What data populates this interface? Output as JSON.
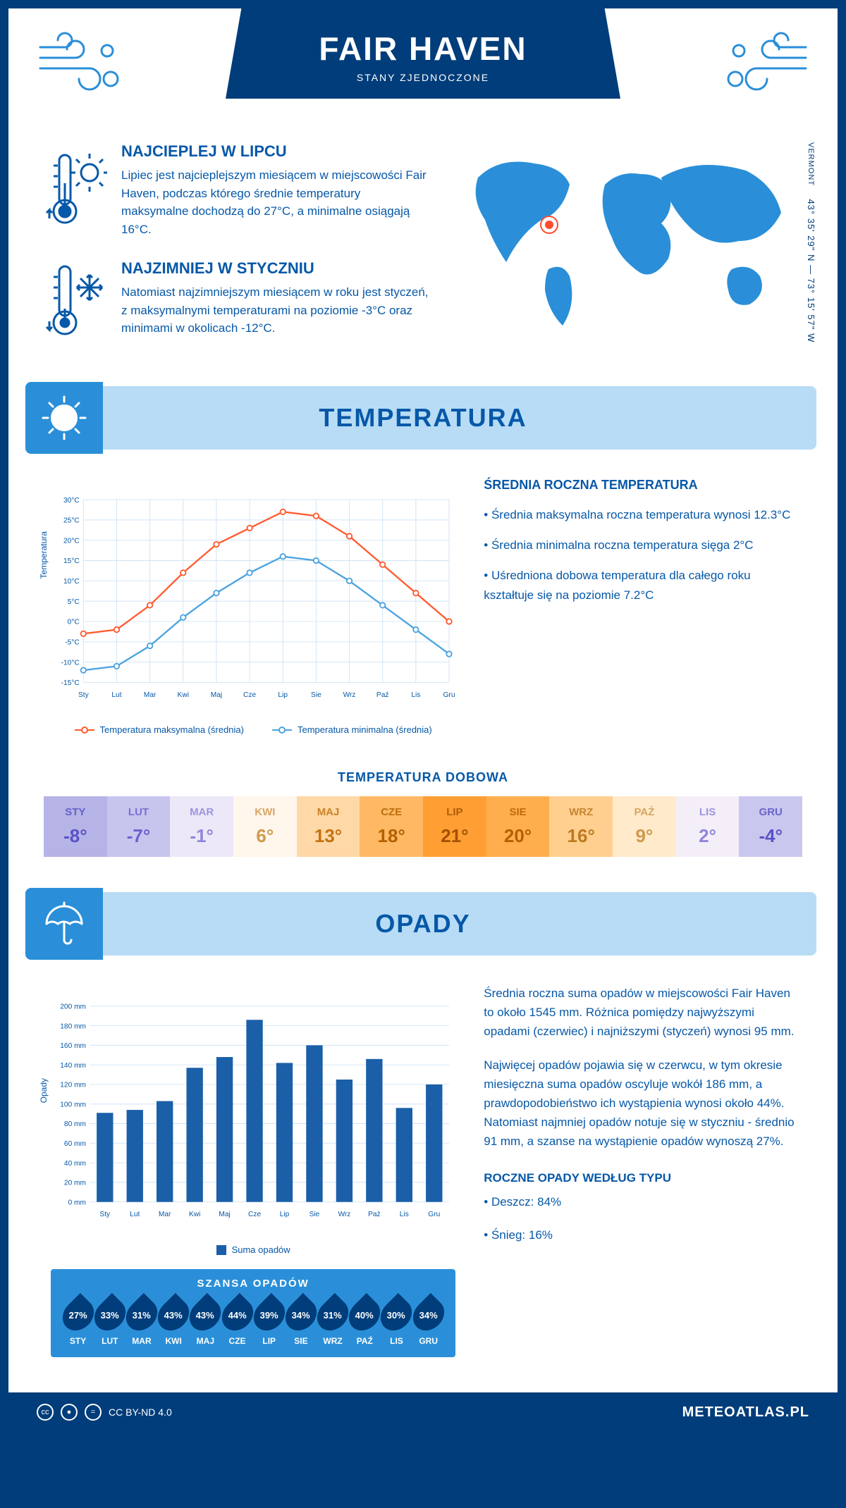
{
  "header": {
    "title": "FAIR HAVEN",
    "subtitle": "STANY ZJEDNOCZONE"
  },
  "location": {
    "region": "VERMONT",
    "coords": "43° 35' 29\" N — 73° 15' 57\" W",
    "marker_color": "#ff4d2e"
  },
  "intro": {
    "warm": {
      "title": "NAJCIEPLEJ W LIPCU",
      "text": "Lipiec jest najcieplejszym miesiącem w miejscowości Fair Haven, podczas którego średnie temperatury maksymalne dochodzą do 27°C, a minimalne osiągają 16°C."
    },
    "cold": {
      "title": "NAJZIMNIEJ W STYCZNIU",
      "text": "Natomiast najzimniejszym miesiącem w roku jest styczeń, z maksymalnymi temperaturami na poziomie -3°C oraz minimami w okolicach -12°C."
    }
  },
  "temperature": {
    "section_title": "TEMPERATURA",
    "chart": {
      "type": "line",
      "months": [
        "Sty",
        "Lut",
        "Mar",
        "Kwi",
        "Maj",
        "Cze",
        "Lip",
        "Sie",
        "Wrz",
        "Paź",
        "Lis",
        "Gru"
      ],
      "ylim": [
        -15,
        30
      ],
      "ytick_step": 5,
      "y_suffix": "°C",
      "y_axis_label": "Temperatura",
      "grid_color": "#d0e4f5",
      "background": "#ffffff",
      "series": [
        {
          "name": "Temperatura maksymalna (średnia)",
          "color": "#ff5a2e",
          "values": [
            -3,
            -2,
            4,
            12,
            19,
            23,
            27,
            26,
            21,
            14,
            7,
            0
          ]
        },
        {
          "name": "Temperatura minimalna (średnia)",
          "color": "#4aa3e0",
          "values": [
            -12,
            -11,
            -6,
            1,
            7,
            12,
            16,
            15,
            10,
            4,
            -2,
            -8
          ]
        }
      ]
    },
    "info": {
      "title": "ŚREDNIA ROCZNA TEMPERATURA",
      "bullets": [
        "Średnia maksymalna roczna temperatura wynosi 12.3°C",
        "Średnia minimalna roczna temperatura sięga 2°C",
        "Uśredniona dobowa temperatura dla całego roku kształtuje się na poziomie 7.2°C"
      ]
    },
    "daily": {
      "title": "TEMPERATURA DOBOWA",
      "months": [
        "STY",
        "LUT",
        "MAR",
        "KWI",
        "MAJ",
        "CZE",
        "LIP",
        "SIE",
        "WRZ",
        "PAŹ",
        "LIS",
        "GRU"
      ],
      "values": [
        "-8°",
        "-7°",
        "-1°",
        "6°",
        "13°",
        "18°",
        "21°",
        "20°",
        "16°",
        "9°",
        "2°",
        "-4°"
      ],
      "colors": [
        "#b6b3e6",
        "#c7c5ee",
        "#ede8f7",
        "#fff6ec",
        "#ffd8a8",
        "#ffb964",
        "#ff9f33",
        "#ffae4d",
        "#ffcf8f",
        "#ffeacb",
        "#f4eef8",
        "#cac7ef"
      ],
      "text_colors": [
        "#5a52c4",
        "#6b63cf",
        "#8e86dc",
        "#cf9a4e",
        "#c27410",
        "#b36000",
        "#a35000",
        "#b36000",
        "#bd7a1f",
        "#cf9a4e",
        "#8e86dc",
        "#5a52c4"
      ]
    }
  },
  "precip": {
    "section_title": "OPADY",
    "chart": {
      "type": "bar",
      "months": [
        "Sty",
        "Lut",
        "Mar",
        "Kwi",
        "Maj",
        "Cze",
        "Lip",
        "Sie",
        "Wrz",
        "Paź",
        "Lis",
        "Gru"
      ],
      "values": [
        91,
        94,
        103,
        137,
        148,
        186,
        142,
        160,
        125,
        146,
        96,
        120
      ],
      "ylim": [
        0,
        200
      ],
      "ytick_step": 20,
      "y_suffix": " mm",
      "y_axis_label": "Opady",
      "bar_color": "#1a5fa8",
      "grid_color": "#d0e4f5",
      "legend": "Suma opadów"
    },
    "info": {
      "p1": "Średnia roczna suma opadów w miejscowości Fair Haven to około 1545 mm. Różnica pomiędzy najwyższymi opadami (czerwiec) i najniższymi (styczeń) wynosi 95 mm.",
      "p2": "Najwięcej opadów pojawia się w czerwcu, w tym okresie miesięczna suma opadów oscyluje wokół 186 mm, a prawdopodobieństwo ich wystąpienia wynosi około 44%. Natomiast najmniej opadów notuje się w styczniu - średnio 91 mm, a szanse na wystąpienie opadów wynoszą 27%.",
      "type_title": "ROCZNE OPADY WEDŁUG TYPU",
      "types": [
        "Deszcz: 84%",
        "Śnieg: 16%"
      ]
    },
    "chance": {
      "title": "SZANSA OPADÓW",
      "months": [
        "STY",
        "LUT",
        "MAR",
        "KWI",
        "MAJ",
        "CZE",
        "LIP",
        "SIE",
        "WRZ",
        "PAŹ",
        "LIS",
        "GRU"
      ],
      "values": [
        "27%",
        "33%",
        "31%",
        "43%",
        "43%",
        "44%",
        "39%",
        "34%",
        "31%",
        "40%",
        "30%",
        "34%"
      ],
      "drop_color": "#003d7a",
      "bg_color": "#2a8fd8"
    }
  },
  "footer": {
    "license": "CC BY-ND 4.0",
    "site": "METEOATLAS.PL"
  },
  "palette": {
    "primary": "#003d7a",
    "accent": "#2a8fd8",
    "light": "#b8dcf5"
  }
}
